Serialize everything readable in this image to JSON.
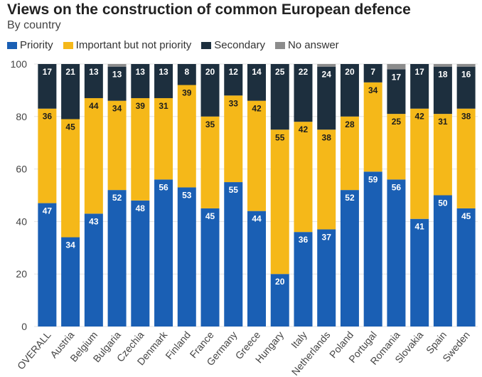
{
  "header": {
    "title": "Views on the construction of common European defence",
    "subtitle": "By country"
  },
  "colors": {
    "priority": "#1a5fb4",
    "important": "#f5b819",
    "secondary": "#1d2f3e",
    "no_answer": "#8c8c8c",
    "grid": "#e3e3e3"
  },
  "chart_data": {
    "type": "bar",
    "stacked": true,
    "ylim": [
      0,
      100
    ],
    "yticks": [
      0,
      20,
      40,
      60,
      80,
      100
    ],
    "categories": [
      "OVERALL",
      "Austria",
      "Belgium",
      "Bulgaria",
      "Czechia",
      "Denmark",
      "Finland",
      "France",
      "Germany",
      "Greece",
      "Hungary",
      "Italy",
      "Netherlands",
      "Poland",
      "Portugal",
      "Romania",
      "Slovakia",
      "Spain",
      "Sweden"
    ],
    "series": [
      {
        "name": "Priority",
        "color_key": "priority",
        "values": [
          47,
          34,
          43,
          52,
          48,
          56,
          53,
          45,
          55,
          44,
          20,
          36,
          37,
          52,
          59,
          56,
          41,
          50,
          45
        ]
      },
      {
        "name": "Important but not priority",
        "color_key": "important",
        "values": [
          36,
          45,
          44,
          34,
          39,
          31,
          39,
          35,
          33,
          42,
          55,
          42,
          38,
          28,
          34,
          25,
          42,
          31,
          38
        ]
      },
      {
        "name": "Secondary",
        "color_key": "secondary",
        "values": [
          17,
          21,
          13,
          13,
          13,
          13,
          8,
          20,
          12,
          14,
          25,
          22,
          24,
          20,
          7,
          17,
          17,
          18,
          16
        ]
      },
      {
        "name": "No answer",
        "color_key": "no_answer",
        "values": [
          0,
          0,
          0,
          1,
          0,
          0,
          0,
          0,
          0,
          0,
          0,
          0,
          1,
          0,
          0,
          2,
          0,
          1,
          1
        ]
      }
    ],
    "legend_position": "top-left",
    "grid": true
  }
}
